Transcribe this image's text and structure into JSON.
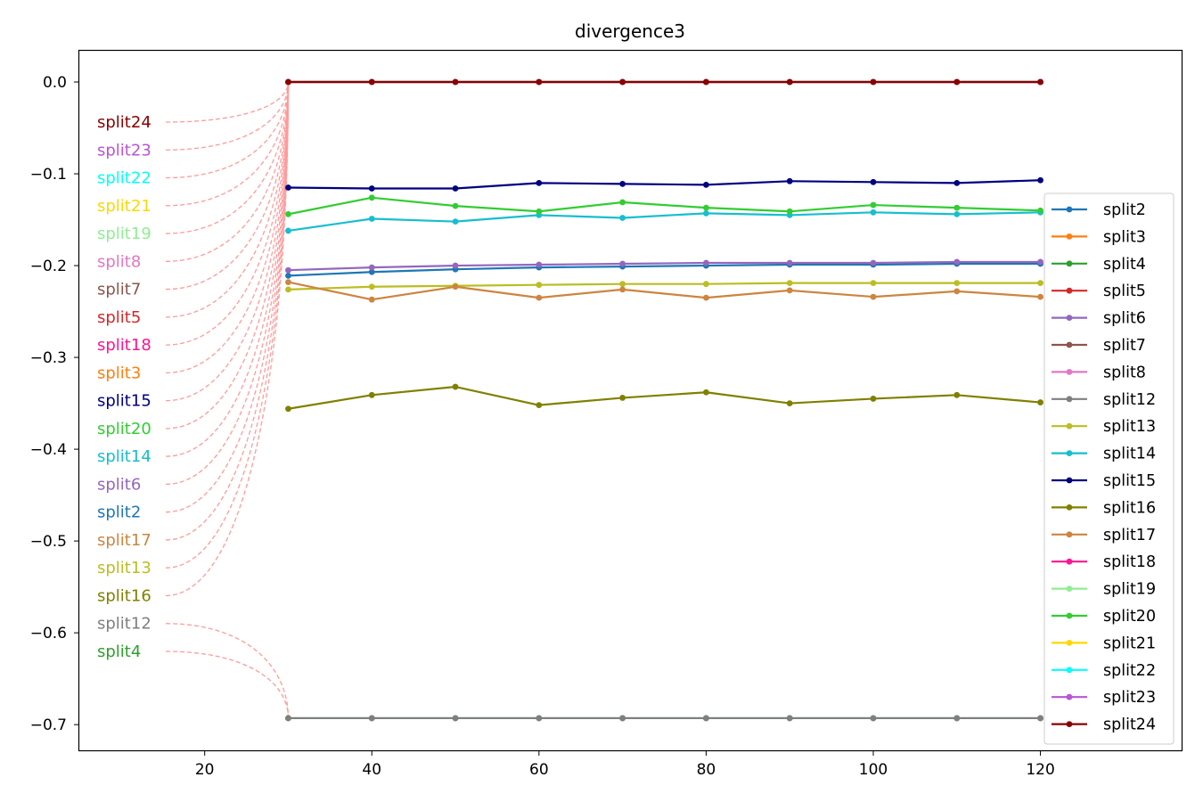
{
  "chart_data": {
    "type": "line",
    "title": "divergence3",
    "xlabel": "",
    "ylabel": "",
    "xlim": [
      5,
      137
    ],
    "ylim": [
      -0.728,
      0.034
    ],
    "x_ticks": [
      20,
      40,
      60,
      80,
      100,
      120
    ],
    "x_tick_labels": [
      "20",
      "40",
      "60",
      "80",
      "100",
      "120"
    ],
    "y_ticks": [
      0.0,
      -0.1,
      -0.2,
      -0.3,
      -0.4,
      -0.5,
      -0.6,
      -0.7
    ],
    "y_tick_labels": [
      "0.0",
      "−0.1",
      "−0.2",
      "−0.3",
      "−0.4",
      "−0.5",
      "−0.6",
      "−0.7"
    ],
    "grid": false,
    "legend_position": "right",
    "x": [
      30,
      40,
      50,
      60,
      70,
      80,
      90,
      100,
      110,
      120
    ],
    "series": [
      {
        "name": "split2",
        "color": "#1f77b4",
        "values": [
          -0.211,
          -0.207,
          -0.204,
          -0.202,
          -0.201,
          -0.2,
          -0.199,
          -0.199,
          -0.198,
          -0.198
        ]
      },
      {
        "name": "split3",
        "color": "#ff7f0e",
        "values": [
          0,
          0,
          0,
          0,
          0,
          0,
          0,
          0,
          0,
          0
        ]
      },
      {
        "name": "split4",
        "color": "#2ca02c",
        "values": [
          -0.693,
          -0.693,
          -0.693,
          -0.693,
          -0.693,
          -0.693,
          -0.693,
          -0.693,
          -0.693,
          -0.693
        ]
      },
      {
        "name": "split5",
        "color": "#d62728",
        "values": [
          0,
          0,
          0,
          0,
          0,
          0,
          0,
          0,
          0,
          0
        ]
      },
      {
        "name": "split6",
        "color": "#9467bd",
        "values": [
          -0.205,
          -0.202,
          -0.2,
          -0.199,
          -0.198,
          -0.197,
          -0.197,
          -0.197,
          -0.196,
          -0.196
        ]
      },
      {
        "name": "split7",
        "color": "#8c564b",
        "values": [
          0,
          0,
          0,
          0,
          0,
          0,
          0,
          0,
          0,
          0
        ]
      },
      {
        "name": "split8",
        "color": "#e377c2",
        "values": [
          0,
          0,
          0,
          0,
          0,
          0,
          0,
          0,
          0,
          0
        ]
      },
      {
        "name": "split12",
        "color": "#7f7f7f",
        "values": [
          -0.693,
          -0.693,
          -0.693,
          -0.693,
          -0.693,
          -0.693,
          -0.693,
          -0.693,
          -0.693,
          -0.693
        ]
      },
      {
        "name": "split13",
        "color": "#bcbd22",
        "values": [
          -0.226,
          -0.223,
          -0.222,
          -0.221,
          -0.22,
          -0.22,
          -0.219,
          -0.219,
          -0.219,
          -0.219
        ]
      },
      {
        "name": "split14",
        "color": "#17becf",
        "values": [
          -0.162,
          -0.149,
          -0.152,
          -0.145,
          -0.148,
          -0.143,
          -0.145,
          -0.142,
          -0.144,
          -0.142
        ]
      },
      {
        "name": "split15",
        "color": "#000080",
        "values": [
          -0.115,
          -0.116,
          -0.116,
          -0.11,
          -0.111,
          -0.112,
          -0.108,
          -0.109,
          -0.11,
          -0.107
        ]
      },
      {
        "name": "split16",
        "color": "#808000",
        "values": [
          -0.356,
          -0.341,
          -0.332,
          -0.352,
          -0.344,
          -0.338,
          -0.35,
          -0.345,
          -0.341,
          -0.349
        ]
      },
      {
        "name": "split17",
        "color": "#cd853f",
        "values": [
          -0.218,
          -0.237,
          -0.223,
          -0.235,
          -0.226,
          -0.235,
          -0.227,
          -0.234,
          -0.228,
          -0.234
        ]
      },
      {
        "name": "split18",
        "color": "#ff1493",
        "values": [
          0,
          0,
          0,
          0,
          0,
          0,
          0,
          0,
          0,
          0
        ]
      },
      {
        "name": "split19",
        "color": "#90ee90",
        "values": [
          0,
          0,
          0,
          0,
          0,
          0,
          0,
          0,
          0,
          0
        ]
      },
      {
        "name": "split20",
        "color": "#32cd32",
        "values": [
          -0.144,
          -0.126,
          -0.135,
          -0.141,
          -0.131,
          -0.137,
          -0.141,
          -0.134,
          -0.137,
          -0.14
        ]
      },
      {
        "name": "split21",
        "color": "#ffd700",
        "values": [
          0,
          0,
          0,
          0,
          0,
          0,
          0,
          0,
          0,
          0
        ]
      },
      {
        "name": "split22",
        "color": "#00ffff",
        "values": [
          0,
          0,
          0,
          0,
          0,
          0,
          0,
          0,
          0,
          0
        ]
      },
      {
        "name": "split23",
        "color": "#ba55d3",
        "values": [
          0,
          0,
          0,
          0,
          0,
          0,
          0,
          0,
          0,
          0
        ]
      },
      {
        "name": "split24",
        "color": "#8b0000",
        "values": [
          0,
          0,
          0,
          0,
          0,
          0,
          0,
          0,
          0,
          0
        ]
      }
    ],
    "side_labels": [
      {
        "text": "split24",
        "color": "#8b0000",
        "target": 0.0
      },
      {
        "text": "split23",
        "color": "#ba55d3",
        "target": 0.0
      },
      {
        "text": "split22",
        "color": "#00ffff",
        "target": 0.0
      },
      {
        "text": "split21",
        "color": "#ffd700",
        "target": 0.0
      },
      {
        "text": "split19",
        "color": "#90ee90",
        "target": 0.0
      },
      {
        "text": "split8",
        "color": "#e377c2",
        "target": 0.0
      },
      {
        "text": "split7",
        "color": "#8c564b",
        "target": 0.0
      },
      {
        "text": "split5",
        "color": "#d62728",
        "target": 0.0
      },
      {
        "text": "split18",
        "color": "#ff1493",
        "target": 0.0
      },
      {
        "text": "split3",
        "color": "#ff7f0e",
        "target": 0.0
      },
      {
        "text": "split15",
        "color": "#000080",
        "target": 0.0
      },
      {
        "text": "split20",
        "color": "#32cd32",
        "target": 0.0
      },
      {
        "text": "split14",
        "color": "#17becf",
        "target": 0.0
      },
      {
        "text": "split6",
        "color": "#9467bd",
        "target": 0.0
      },
      {
        "text": "split2",
        "color": "#1f77b4",
        "target": 0.0
      },
      {
        "text": "split17",
        "color": "#cd853f",
        "target": 0.0
      },
      {
        "text": "split13",
        "color": "#bcbd22",
        "target": 0.0
      },
      {
        "text": "split16",
        "color": "#808000",
        "target": 0.0
      },
      {
        "text": "split12",
        "color": "#7f7f7f",
        "target": -0.693
      },
      {
        "text": "split4",
        "color": "#2ca02c",
        "target": -0.693
      }
    ],
    "annotation_line_color": "#ff9a9a"
  }
}
